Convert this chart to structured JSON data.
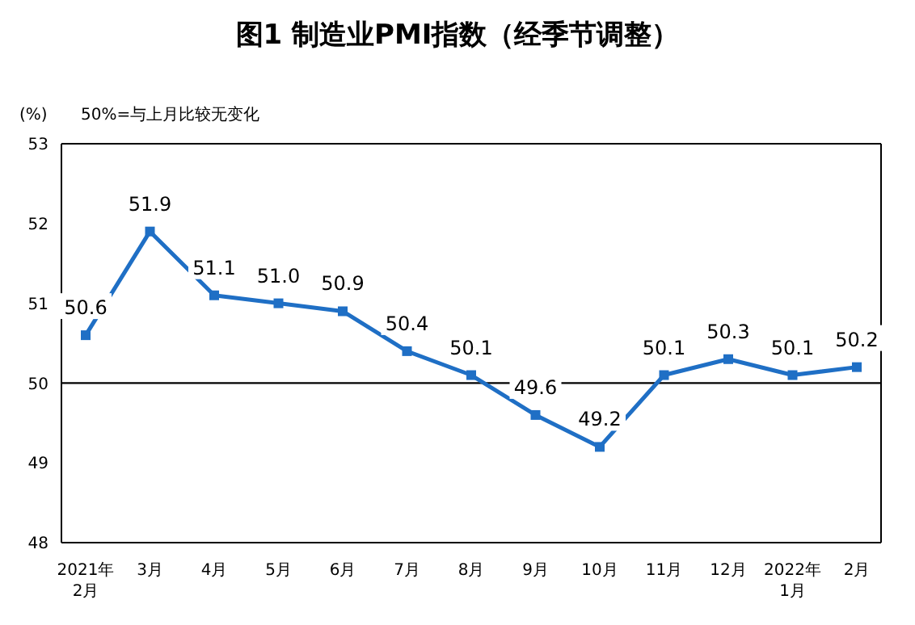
{
  "chart_data": {
    "type": "line",
    "title": "图1 制造业PMI指数（经季节调整）",
    "ylabel": "(%)",
    "annotations": [
      "50%=与上月比较无变化"
    ],
    "categories": [
      "2021年\n2月",
      "3月",
      "4月",
      "5月",
      "6月",
      "7月",
      "8月",
      "9月",
      "10月",
      "11月",
      "12月",
      "2022年\n1月",
      "2月"
    ],
    "series": [
      {
        "color": "#1f6fc5",
        "values": [
          50.6,
          51.9,
          51.1,
          51.0,
          50.9,
          50.4,
          50.1,
          49.6,
          49.2,
          50.1,
          50.3,
          50.1,
          50.2
        ]
      }
    ],
    "ylim": [
      48,
      53
    ],
    "yticks": [
      48,
      49,
      50,
      51,
      52,
      53
    ],
    "ref_lines": [
      {
        "axis": "y",
        "value": 50,
        "color": "#000000"
      }
    ],
    "grid": false,
    "legend": false,
    "marker": "square",
    "line_style": "solid",
    "value_labels": [
      "50.6",
      "51.9",
      "51.1",
      "51.0",
      "50.9",
      "50.4",
      "50.1",
      "49.6",
      "49.2",
      "50.1",
      "50.3",
      "50.1",
      "50.2"
    ]
  }
}
